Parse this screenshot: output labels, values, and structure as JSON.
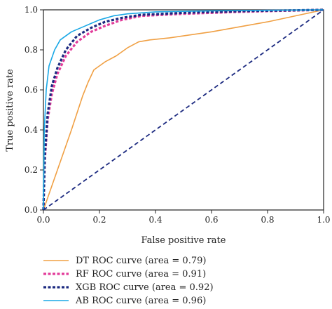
{
  "chart_data": {
    "type": "line",
    "title": "",
    "xlabel": "False positive rate",
    "ylabel": "True positive rate",
    "xlim": [
      0.0,
      1.0
    ],
    "ylim": [
      0.0,
      1.0
    ],
    "xticks": [
      "0.0",
      "0.2",
      "0.4",
      "0.6",
      "0.8",
      "1.0"
    ],
    "yticks": [
      "0.0",
      "0.2",
      "0.4",
      "0.6",
      "0.8",
      "1.0"
    ],
    "grid": false,
    "legend_position": "bottom",
    "series": [
      {
        "name": "DT ROC curve (area = 0.79)",
        "color": "#f0a044",
        "style": "solid",
        "points": [
          [
            0,
            0
          ],
          [
            0.05,
            0.2
          ],
          [
            0.1,
            0.4
          ],
          [
            0.14,
            0.57
          ],
          [
            0.16,
            0.64
          ],
          [
            0.18,
            0.7
          ],
          [
            0.22,
            0.74
          ],
          [
            0.26,
            0.77
          ],
          [
            0.3,
            0.81
          ],
          [
            0.34,
            0.84
          ],
          [
            0.38,
            0.85
          ],
          [
            0.45,
            0.86
          ],
          [
            0.6,
            0.89
          ],
          [
            0.8,
            0.94
          ],
          [
            1.0,
            1.0
          ]
        ]
      },
      {
        "name": "RF ROC curve (area = 0.91)",
        "color": "#e23c9a",
        "style": "dotted",
        "points": [
          [
            0,
            0
          ],
          [
            0.005,
            0.25
          ],
          [
            0.015,
            0.45
          ],
          [
            0.03,
            0.58
          ],
          [
            0.05,
            0.68
          ],
          [
            0.08,
            0.77
          ],
          [
            0.12,
            0.84
          ],
          [
            0.17,
            0.89
          ],
          [
            0.22,
            0.92
          ],
          [
            0.28,
            0.95
          ],
          [
            0.35,
            0.97
          ],
          [
            0.5,
            0.98
          ],
          [
            0.7,
            0.99
          ],
          [
            1.0,
            1.0
          ]
        ]
      },
      {
        "name": "XGB ROC curve (area = 0.92)",
        "color": "#1c2a80",
        "style": "dotted",
        "points": [
          [
            0,
            0
          ],
          [
            0.005,
            0.27
          ],
          [
            0.015,
            0.48
          ],
          [
            0.03,
            0.62
          ],
          [
            0.05,
            0.71
          ],
          [
            0.08,
            0.8
          ],
          [
            0.12,
            0.87
          ],
          [
            0.17,
            0.91
          ],
          [
            0.22,
            0.94
          ],
          [
            0.28,
            0.96
          ],
          [
            0.35,
            0.975
          ],
          [
            0.5,
            0.985
          ],
          [
            0.7,
            0.993
          ],
          [
            1.0,
            1.0
          ]
        ]
      },
      {
        "name": "AB ROC curve (area = 0.96)",
        "color": "#1aa8e6",
        "style": "solid",
        "points": [
          [
            0,
            0
          ],
          [
            0.003,
            0.4
          ],
          [
            0.01,
            0.6
          ],
          [
            0.02,
            0.72
          ],
          [
            0.04,
            0.8
          ],
          [
            0.06,
            0.85
          ],
          [
            0.1,
            0.89
          ],
          [
            0.15,
            0.92
          ],
          [
            0.2,
            0.95
          ],
          [
            0.25,
            0.97
          ],
          [
            0.3,
            0.98
          ],
          [
            0.4,
            0.99
          ],
          [
            0.6,
            0.995
          ],
          [
            1.0,
            1.0
          ]
        ]
      },
      {
        "name": "",
        "color": "#1c2a80",
        "style": "dashed",
        "points": [
          [
            0,
            0
          ],
          [
            1,
            1
          ]
        ]
      }
    ]
  }
}
